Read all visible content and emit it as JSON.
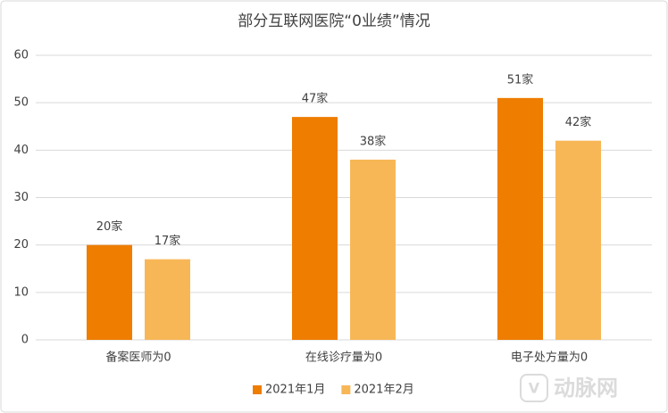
{
  "chart_data": {
    "type": "bar",
    "title": "部分互联网医院“0业绩”情况",
    "categories": [
      "备案医师为0",
      "在线诊疗量为0",
      "电子处方量为0"
    ],
    "series": [
      {
        "name": "2021年1月",
        "color": "#ee7d00",
        "values": [
          20,
          47,
          51
        ],
        "value_labels": [
          "20家",
          "47家",
          "51家"
        ]
      },
      {
        "name": "2021年2月",
        "color": "#f7b757",
        "values": [
          17,
          38,
          42
        ],
        "value_labels": [
          "17家",
          "38家",
          "42家"
        ]
      }
    ],
    "ylim": [
      0,
      60
    ],
    "yticks": [
      0,
      10,
      20,
      30,
      40,
      50,
      60
    ],
    "grid": true,
    "legend": "bottom"
  },
  "watermark": "动脉网"
}
